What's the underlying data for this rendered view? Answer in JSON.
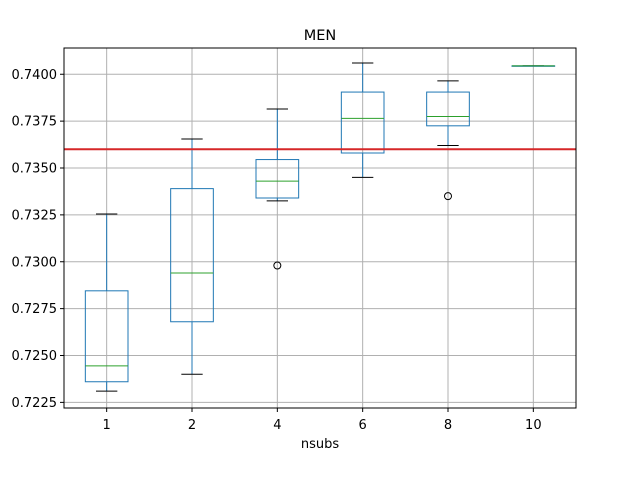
{
  "chart_data": {
    "type": "boxplot",
    "title": "MEN",
    "xlabel": "nsubs",
    "ylabel": "",
    "categories": [
      "1",
      "2",
      "4",
      "6",
      "8",
      "10"
    ],
    "ylim": [
      0.7222,
      0.7414
    ],
    "yticks": [
      0.7225,
      0.725,
      0.7275,
      0.73,
      0.7325,
      0.735,
      0.7375,
      0.74
    ],
    "ytick_labels": [
      "0.7225",
      "0.7250",
      "0.7275",
      "0.7300",
      "0.7325",
      "0.7350",
      "0.7375",
      "0.7400"
    ],
    "grid": true,
    "boxes": [
      {
        "whisker_low": 0.7231,
        "q1": 0.7236,
        "median": 0.72445,
        "q3": 0.72845,
        "whisker_high": 0.73255,
        "outliers": []
      },
      {
        "whisker_low": 0.724,
        "q1": 0.7268,
        "median": 0.7294,
        "q3": 0.7339,
        "whisker_high": 0.73655,
        "outliers": []
      },
      {
        "whisker_low": 0.73325,
        "q1": 0.7334,
        "median": 0.7343,
        "q3": 0.73545,
        "whisker_high": 0.73815,
        "outliers": [
          0.7298
        ]
      },
      {
        "whisker_low": 0.7345,
        "q1": 0.7358,
        "median": 0.73765,
        "q3": 0.73905,
        "whisker_high": 0.7406,
        "outliers": []
      },
      {
        "whisker_low": 0.7362,
        "q1": 0.73725,
        "median": 0.73775,
        "q3": 0.73905,
        "whisker_high": 0.73965,
        "outliers": [
          0.7335
        ]
      },
      {
        "whisker_low": 0.74045,
        "q1": 0.74045,
        "median": 0.74045,
        "q3": 0.74045,
        "whisker_high": 0.74045,
        "outliers": []
      }
    ],
    "reference_line": {
      "y": 0.736,
      "color": "#d62728"
    },
    "colors": {
      "box": "#1f77b4",
      "median": "#2ca02c",
      "whisker": "#000000",
      "grid": "#b0b0b0"
    }
  }
}
